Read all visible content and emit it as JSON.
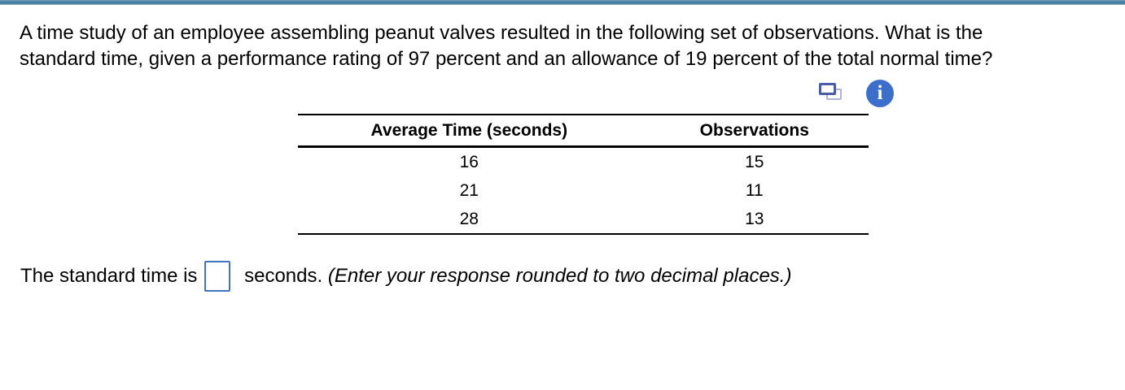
{
  "question": {
    "line1": "A time study of an employee assembling peanut valves resulted in the following set of observations. What is the",
    "line2": "standard time, given a performance rating of 97 percent and an allowance of 19 percent of the total normal time?"
  },
  "icons": {
    "info_glyph": "i",
    "info_color": "#3c6fcb",
    "copy_front_color": "#4a5ba8",
    "copy_back_color": "#aeb4d8"
  },
  "table": {
    "headers": [
      "Average Time (seconds)",
      "Observations"
    ],
    "rows": [
      [
        "16",
        "15"
      ],
      [
        "21",
        "11"
      ],
      [
        "28",
        "13"
      ]
    ]
  },
  "answer": {
    "prefix": "The standard time is",
    "input_value": "",
    "suffix": " seconds. ",
    "note": "(Enter your response rounded to two decimal places.)"
  },
  "accent": {
    "top_bar": "#4a7fa3",
    "input_border": "#4272c4"
  }
}
